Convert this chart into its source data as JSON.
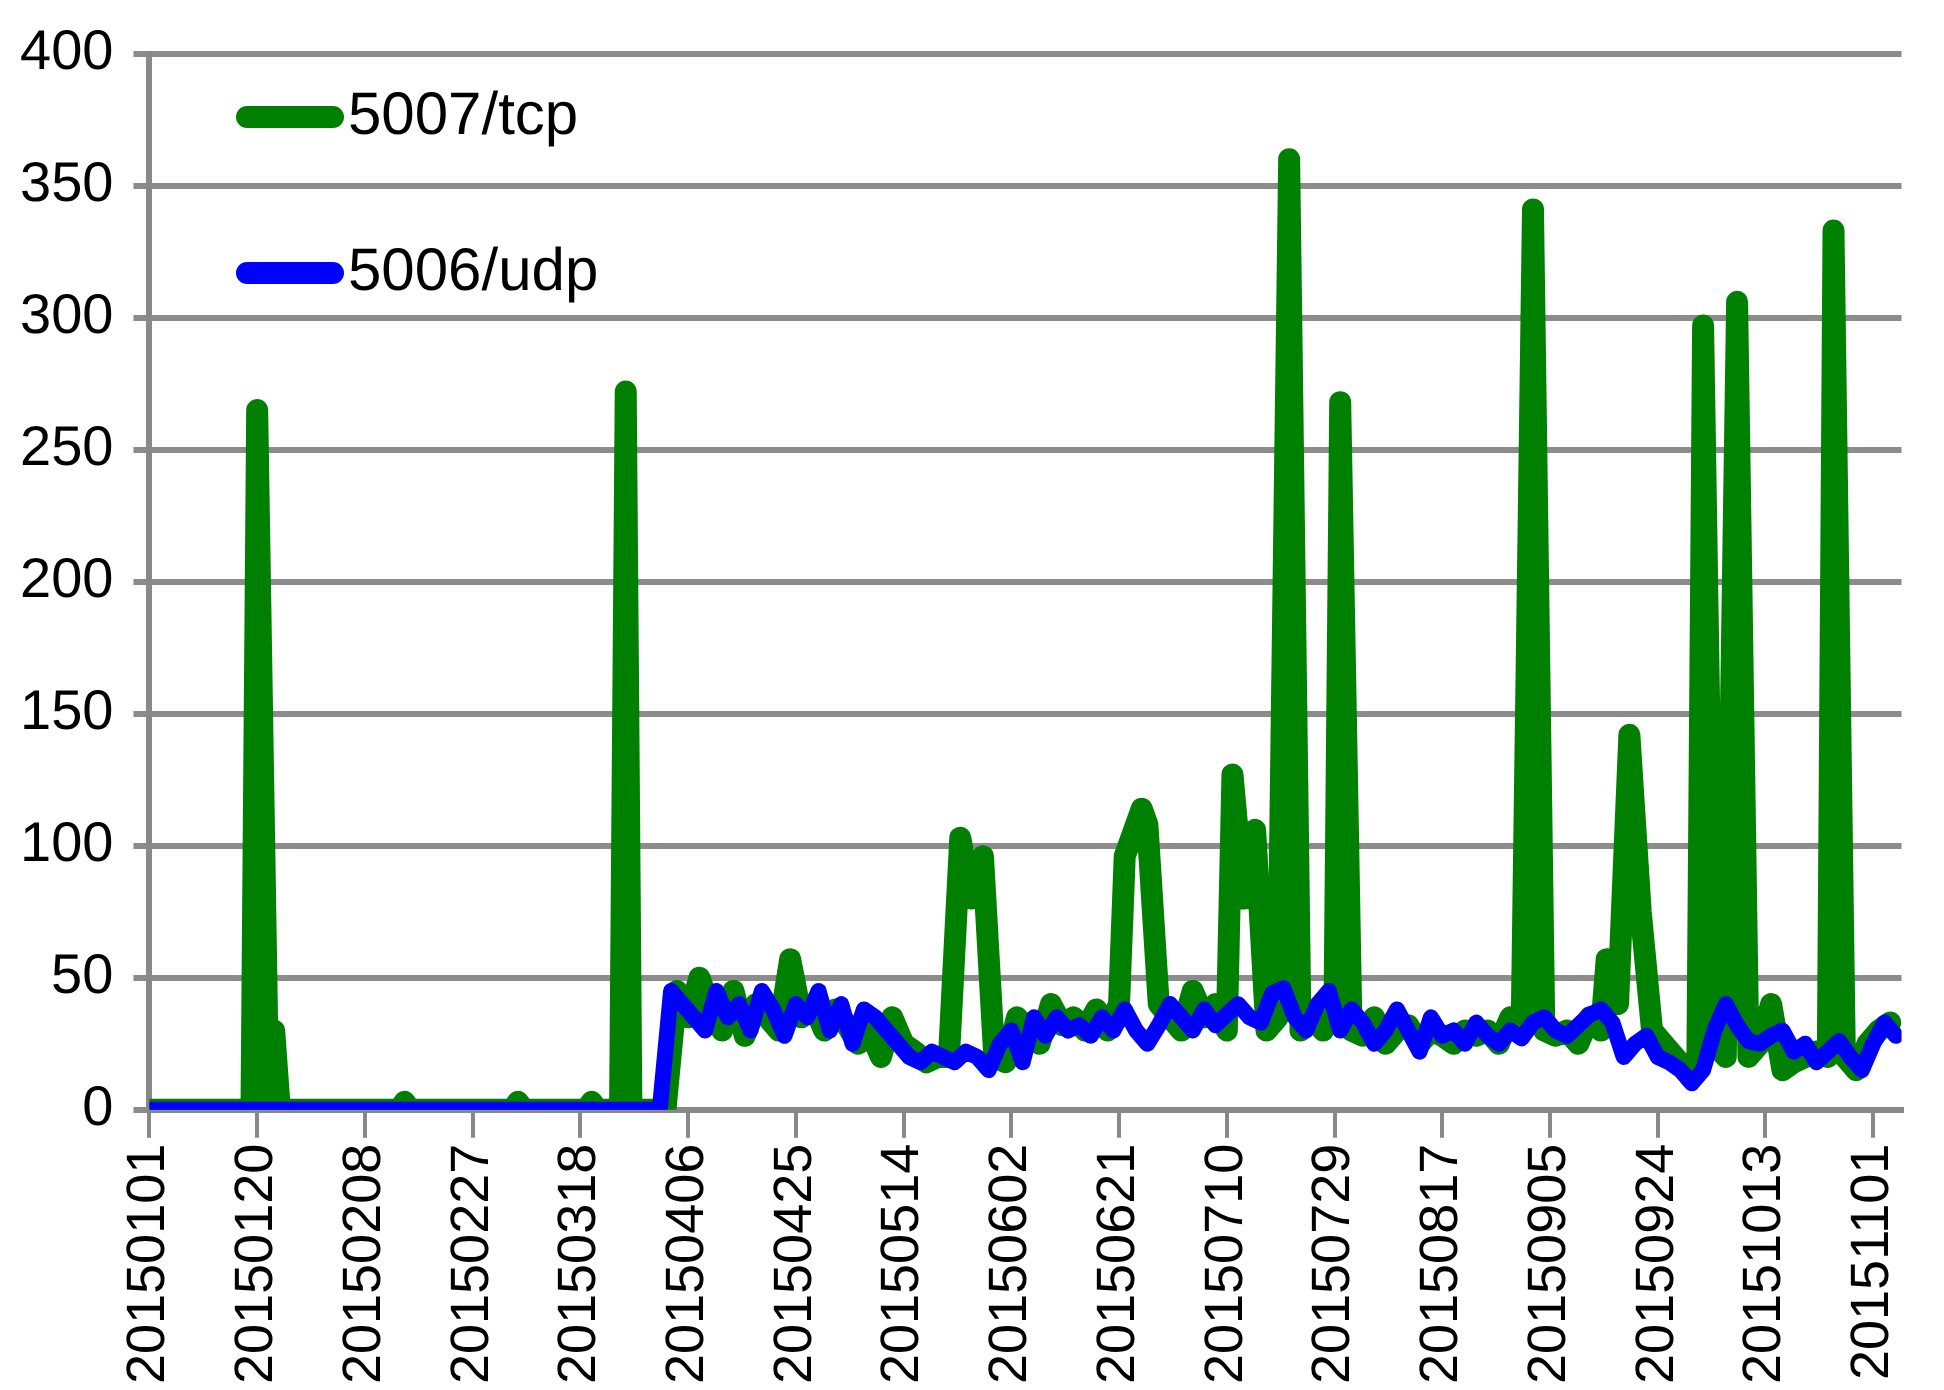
{
  "chart_data": {
    "type": "line",
    "legend": "top left",
    "grid": "y",
    "marker": "none",
    "line_style": "solid",
    "xlim": [
      "2015-01-01",
      "2015-11-06"
    ],
    "xticks": [
      {
        "value": "2015-01-01",
        "label": "20150101"
      },
      {
        "value": "2015-01-20",
        "label": "20150120"
      },
      {
        "value": "2015-02-08",
        "label": "20150208"
      },
      {
        "value": "2015-02-27",
        "label": "20150227"
      },
      {
        "value": "2015-03-18",
        "label": "20150318"
      },
      {
        "value": "2015-04-06",
        "label": "20150406"
      },
      {
        "value": "2015-04-25",
        "label": "20150425"
      },
      {
        "value": "2015-05-14",
        "label": "20150514"
      },
      {
        "value": "2015-06-02",
        "label": "20150602"
      },
      {
        "value": "2015-06-21",
        "label": "20150621"
      },
      {
        "value": "2015-07-10",
        "label": "20150710"
      },
      {
        "value": "2015-07-29",
        "label": "20150729"
      },
      {
        "value": "2015-08-17",
        "label": "20150817"
      },
      {
        "value": "2015-09-05",
        "label": "20150905"
      },
      {
        "value": "2015-09-24",
        "label": "20150924"
      },
      {
        "value": "2015-10-13",
        "label": "20151013"
      },
      {
        "value": "2015-11-01",
        "label": "20151101"
      }
    ],
    "ylim": [
      0,
      400
    ],
    "yticks": [
      0,
      50,
      100,
      150,
      200,
      250,
      300,
      350,
      400
    ],
    "series": [
      {
        "name": "5007/tcp",
        "color": "#008000",
        "x": [
          "2015-01-01",
          "2015-01-19",
          "2015-01-20",
          "2015-01-22",
          "2015-01-23",
          "2015-01-24",
          "2015-02-14",
          "2015-02-15",
          "2015-02-16",
          "2015-03-06",
          "2015-03-07",
          "2015-03-08",
          "2015-03-19",
          "2015-03-20",
          "2015-03-21",
          "2015-03-25",
          "2015-03-26",
          "2015-03-27",
          "2015-04-02",
          "2015-04-04",
          "2015-04-06",
          "2015-04-08",
          "2015-04-10",
          "2015-04-12",
          "2015-04-14",
          "2015-04-16",
          "2015-04-18",
          "2015-04-20",
          "2015-04-22",
          "2015-04-24",
          "2015-04-26",
          "2015-04-28",
          "2015-04-30",
          "2015-05-02",
          "2015-05-04",
          "2015-05-06",
          "2015-05-08",
          "2015-05-10",
          "2015-05-12",
          "2015-05-14",
          "2015-05-16",
          "2015-05-18",
          "2015-05-20",
          "2015-05-22",
          "2015-05-24",
          "2015-05-26",
          "2015-05-28",
          "2015-05-30",
          "2015-06-01",
          "2015-06-03",
          "2015-06-05",
          "2015-06-07",
          "2015-06-09",
          "2015-06-11",
          "2015-06-13",
          "2015-06-15",
          "2015-06-17",
          "2015-06-19",
          "2015-06-21",
          "2015-06-22",
          "2015-06-25",
          "2015-06-26",
          "2015-06-28",
          "2015-06-30",
          "2015-07-02",
          "2015-07-04",
          "2015-07-06",
          "2015-07-08",
          "2015-07-10",
          "2015-07-11",
          "2015-07-13",
          "2015-07-15",
          "2015-07-17",
          "2015-07-19",
          "2015-07-21",
          "2015-07-23",
          "2015-07-25",
          "2015-07-27",
          "2015-07-29",
          "2015-07-30",
          "2015-08-01",
          "2015-08-03",
          "2015-08-05",
          "2015-08-07",
          "2015-08-09",
          "2015-08-11",
          "2015-08-13",
          "2015-08-15",
          "2015-08-17",
          "2015-08-19",
          "2015-08-21",
          "2015-08-23",
          "2015-08-25",
          "2015-08-27",
          "2015-08-29",
          "2015-08-31",
          "2015-09-02",
          "2015-09-04",
          "2015-09-06",
          "2015-09-08",
          "2015-09-10",
          "2015-09-12",
          "2015-09-14",
          "2015-09-15",
          "2015-09-17",
          "2015-09-19",
          "2015-09-21",
          "2015-09-23",
          "2015-09-25",
          "2015-09-27",
          "2015-09-29",
          "2015-10-01",
          "2015-10-02",
          "2015-10-04",
          "2015-10-06",
          "2015-10-08",
          "2015-10-10",
          "2015-10-12",
          "2015-10-14",
          "2015-10-16",
          "2015-10-18",
          "2015-10-20",
          "2015-10-22",
          "2015-10-24",
          "2015-10-25",
          "2015-10-27",
          "2015-10-29",
          "2015-10-31",
          "2015-11-02",
          "2015-11-04"
        ],
        "values": [
          0,
          0,
          265,
          0,
          30,
          0,
          0,
          3,
          0,
          0,
          3,
          0,
          0,
          3,
          0,
          0,
          272,
          0,
          0,
          45,
          35,
          50,
          38,
          30,
          45,
          28,
          40,
          35,
          30,
          57,
          35,
          40,
          30,
          38,
          32,
          25,
          30,
          20,
          35,
          25,
          22,
          18,
          20,
          20,
          103,
          80,
          96,
          20,
          18,
          35,
          30,
          25,
          40,
          32,
          35,
          30,
          38,
          30,
          40,
          96,
          114,
          108,
          40,
          35,
          30,
          45,
          35,
          40,
          30,
          127,
          80,
          106,
          30,
          35,
          360,
          30,
          35,
          30,
          40,
          268,
          30,
          28,
          35,
          25,
          30,
          32,
          25,
          30,
          28,
          25,
          30,
          28,
          30,
          25,
          35,
          30,
          341,
          30,
          28,
          30,
          25,
          35,
          30,
          57,
          40,
          142,
          75,
          30,
          25,
          20,
          15,
          20,
          297,
          25,
          20,
          306,
          20,
          25,
          40,
          15,
          18,
          20,
          22,
          20,
          333,
          20,
          15,
          25,
          30,
          33
        ]
      },
      {
        "name": "5006/udp",
        "color": "#0000ff",
        "x": [
          "2015-01-01",
          "2015-04-01",
          "2015-04-03",
          "2015-04-05",
          "2015-04-07",
          "2015-04-09",
          "2015-04-11",
          "2015-04-13",
          "2015-04-15",
          "2015-04-17",
          "2015-04-19",
          "2015-04-21",
          "2015-04-23",
          "2015-04-25",
          "2015-04-27",
          "2015-04-29",
          "2015-05-01",
          "2015-05-03",
          "2015-05-05",
          "2015-05-07",
          "2015-05-09",
          "2015-05-11",
          "2015-05-13",
          "2015-05-15",
          "2015-05-17",
          "2015-05-19",
          "2015-05-21",
          "2015-05-23",
          "2015-05-25",
          "2015-05-27",
          "2015-05-29",
          "2015-05-31",
          "2015-06-02",
          "2015-06-04",
          "2015-06-06",
          "2015-06-08",
          "2015-06-10",
          "2015-06-12",
          "2015-06-14",
          "2015-06-16",
          "2015-06-18",
          "2015-06-20",
          "2015-06-22",
          "2015-06-24",
          "2015-06-26",
          "2015-06-28",
          "2015-06-30",
          "2015-07-02",
          "2015-07-04",
          "2015-07-06",
          "2015-07-08",
          "2015-07-10",
          "2015-07-12",
          "2015-07-14",
          "2015-07-16",
          "2015-07-18",
          "2015-07-20",
          "2015-07-22",
          "2015-07-24",
          "2015-07-26",
          "2015-07-28",
          "2015-07-30",
          "2015-08-01",
          "2015-08-03",
          "2015-08-05",
          "2015-08-07",
          "2015-08-09",
          "2015-08-11",
          "2015-08-13",
          "2015-08-15",
          "2015-08-17",
          "2015-08-19",
          "2015-08-21",
          "2015-08-23",
          "2015-08-25",
          "2015-08-27",
          "2015-08-29",
          "2015-08-31",
          "2015-09-02",
          "2015-09-04",
          "2015-09-06",
          "2015-09-08",
          "2015-09-10",
          "2015-09-12",
          "2015-09-14",
          "2015-09-16",
          "2015-09-18",
          "2015-09-20",
          "2015-09-22",
          "2015-09-24",
          "2015-09-26",
          "2015-09-28",
          "2015-09-30",
          "2015-10-02",
          "2015-10-04",
          "2015-10-06",
          "2015-10-08",
          "2015-10-10",
          "2015-10-12",
          "2015-10-14",
          "2015-10-16",
          "2015-10-18",
          "2015-10-20",
          "2015-10-22",
          "2015-10-24",
          "2015-10-26",
          "2015-10-28",
          "2015-10-30",
          "2015-11-01",
          "2015-11-03",
          "2015-11-05"
        ],
        "values": [
          0,
          0,
          45,
          40,
          35,
          30,
          45,
          35,
          40,
          30,
          45,
          38,
          28,
          40,
          35,
          45,
          30,
          40,
          25,
          38,
          35,
          30,
          25,
          20,
          18,
          22,
          20,
          18,
          22,
          20,
          15,
          25,
          30,
          18,
          35,
          28,
          35,
          30,
          32,
          28,
          35,
          30,
          38,
          30,
          25,
          32,
          40,
          35,
          30,
          38,
          32,
          36,
          40,
          35,
          33,
          44,
          46,
          35,
          30,
          40,
          45,
          30,
          38,
          33,
          25,
          30,
          38,
          30,
          22,
          35,
          28,
          30,
          25,
          33,
          28,
          25,
          30,
          27,
          33,
          35,
          30,
          28,
          32,
          36,
          38,
          33,
          20,
          25,
          28,
          20,
          18,
          15,
          10,
          15,
          30,
          40,
          32,
          26,
          25,
          28,
          30,
          22,
          25,
          18,
          22,
          26,
          20,
          15,
          25,
          33,
          28
        ]
      }
    ]
  }
}
